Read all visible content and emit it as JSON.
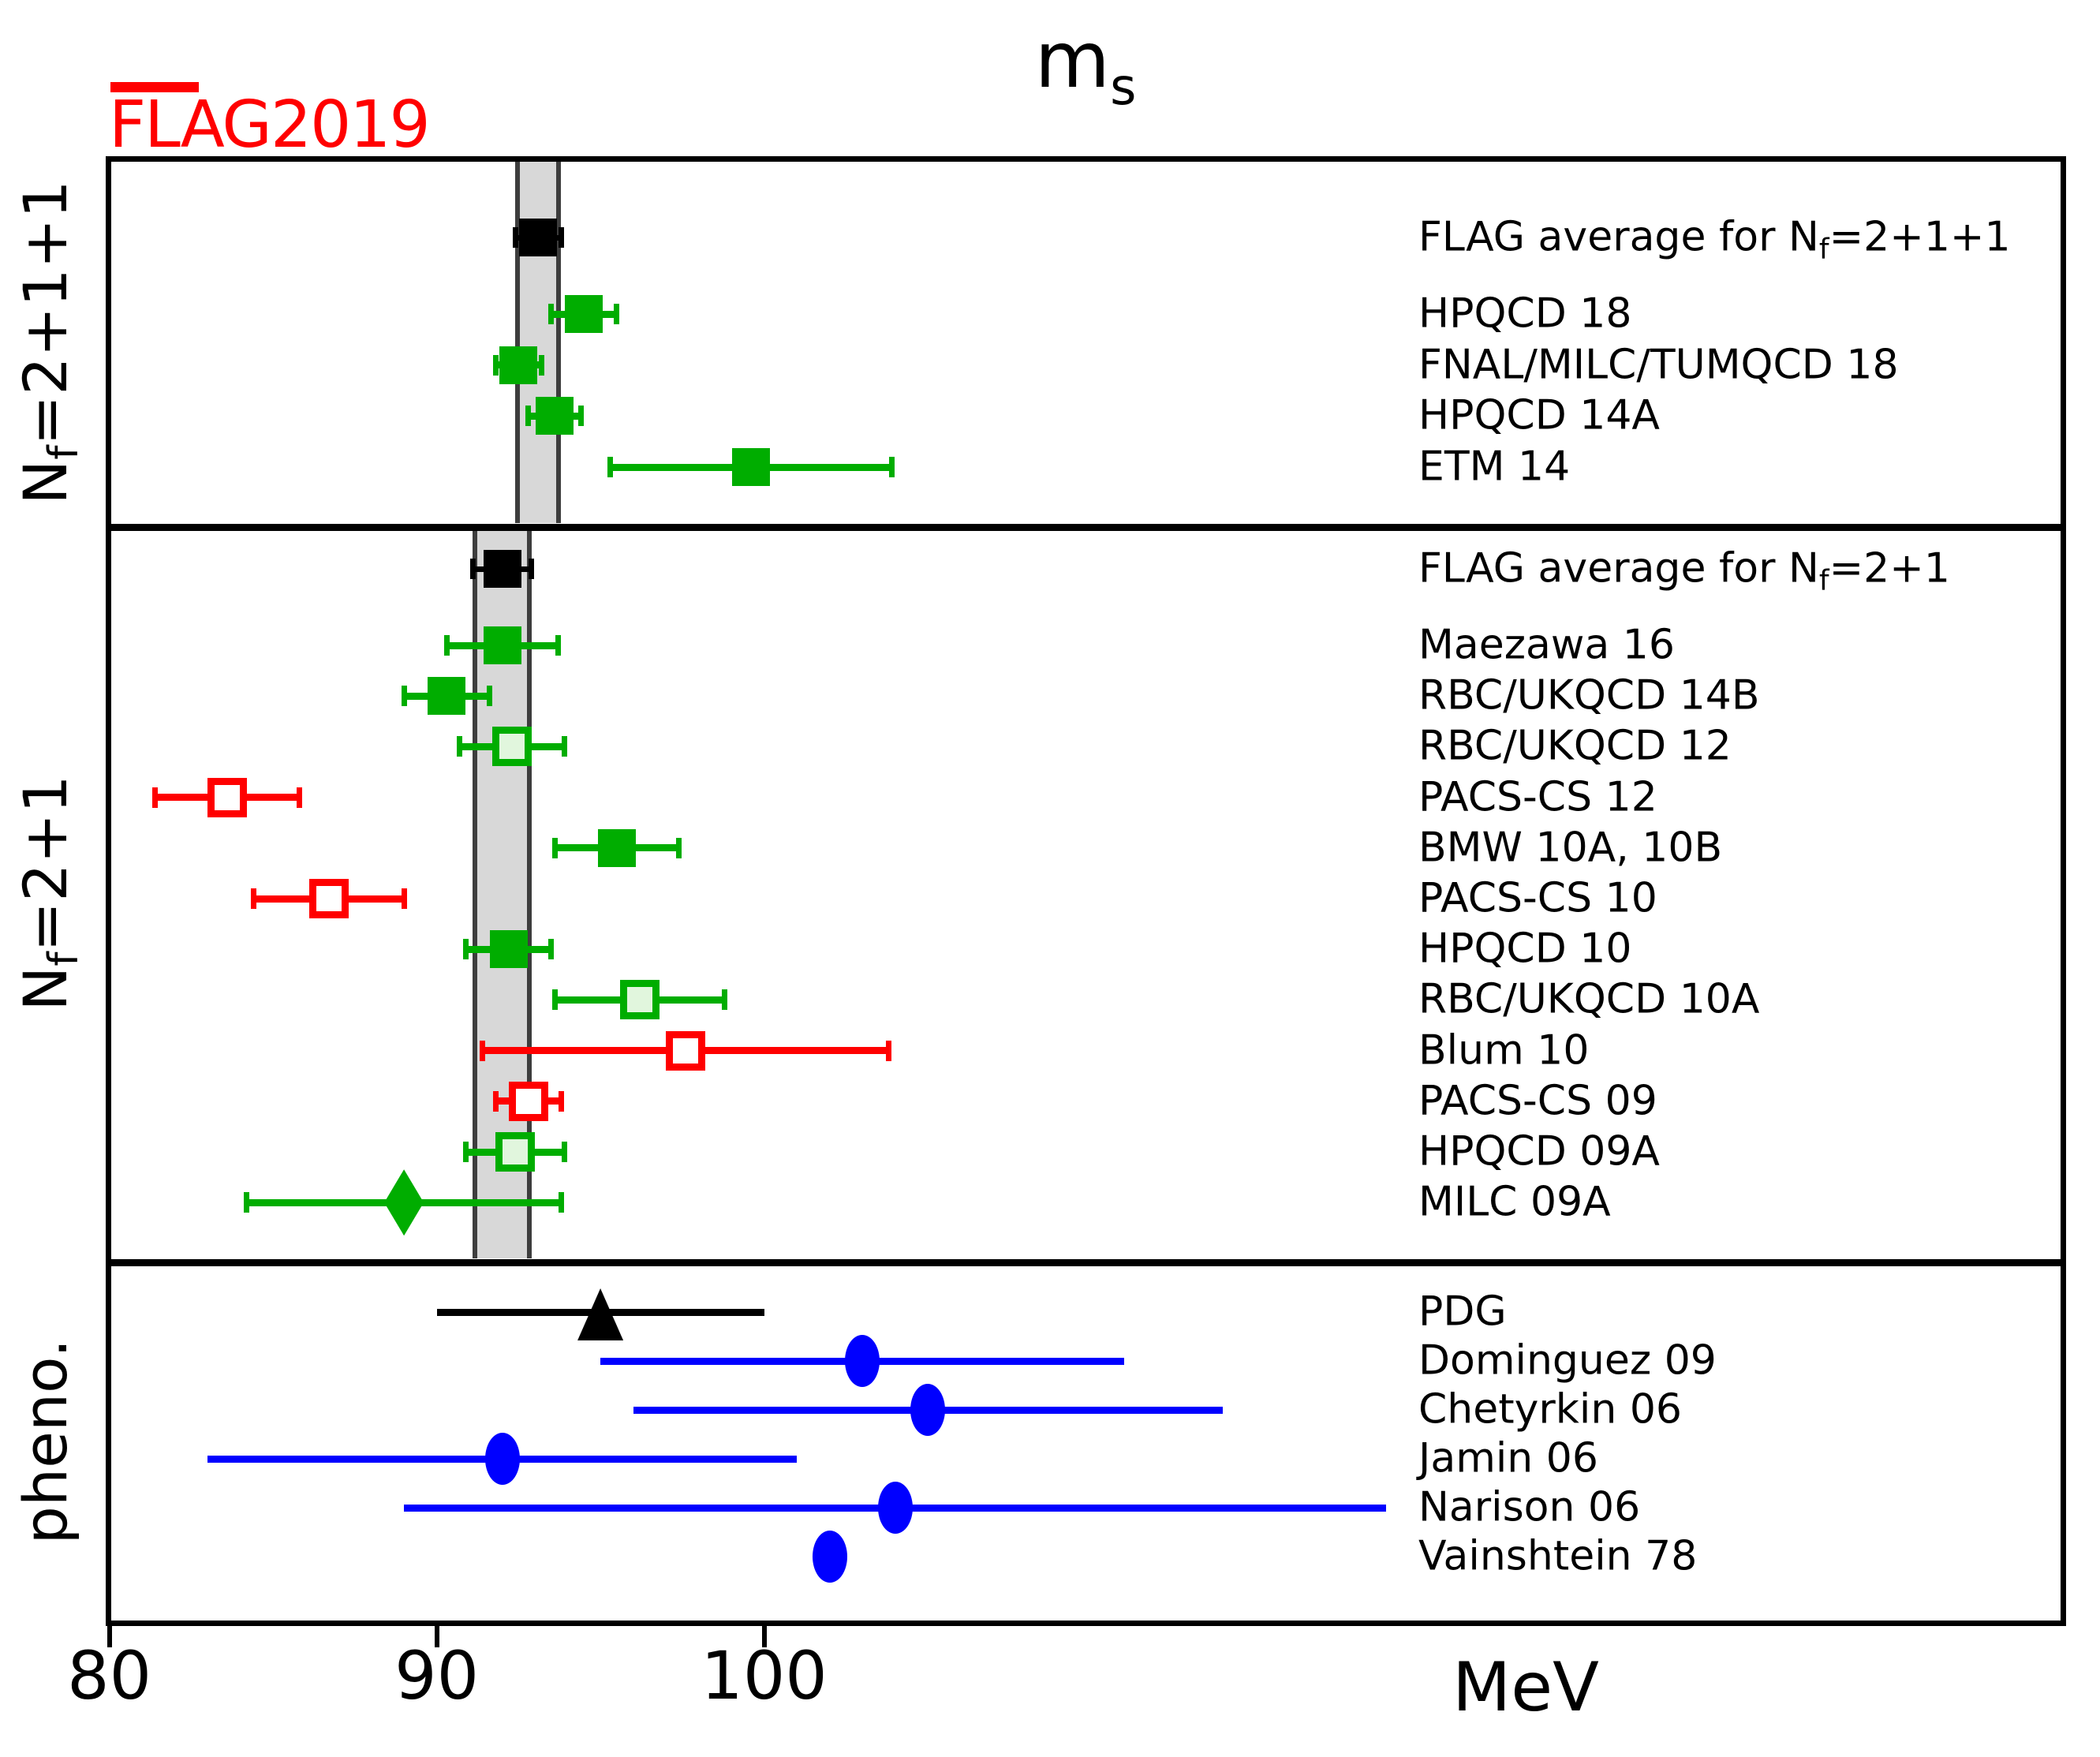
{
  "logo": {
    "flag": "FLAG",
    "year": "2019",
    "color": "#ff0000"
  },
  "title": {
    "base": "m",
    "subscript": "s"
  },
  "colors": {
    "green": "#00ad00",
    "pale_green_fill": "#e1f6dd",
    "red": "#ff0000",
    "blue": "#0000ff",
    "black": "#000000",
    "band_fill": "#d8d8d8",
    "band_edge": "#3d3d3d",
    "logo_red": "#ff0000"
  },
  "chart_data": {
    "type": "scatter",
    "subtype": "horizontal-errorbar-summary-plot",
    "title": "m_s",
    "xlabel": "MeV",
    "xticks": [
      80,
      90,
      100
    ],
    "xrange": [
      80,
      139.7
    ],
    "grid": false,
    "sections": [
      {
        "name": "N_f=2+1+1",
        "band": {
          "center": 93.1,
          "half_width": 0.7
        },
        "rows": [
          {
            "label": "FLAG average for N_f=2+1+1",
            "value": 93.1,
            "err": 0.7,
            "marker": "square",
            "color": "black",
            "is_average": true
          },
          {
            "label": "HPQCD 18",
            "value": 94.5,
            "err": 1.0,
            "marker": "square",
            "color": "green"
          },
          {
            "label": "FNAL/MILC/TUMQCD 18",
            "value": 92.5,
            "err": 0.7,
            "marker": "square",
            "color": "green"
          },
          {
            "label": "HPQCD 14A",
            "value": 93.6,
            "err": 0.8,
            "marker": "square",
            "color": "green"
          },
          {
            "label": "ETM 14",
            "value": 99.6,
            "err": 4.3,
            "marker": "square",
            "color": "green"
          }
        ]
      },
      {
        "name": "N_f=2+1",
        "band": {
          "center": 92.0,
          "half_width": 0.9
        },
        "rows": [
          {
            "label": "FLAG average for N_f=2+1",
            "value": 92.0,
            "err": 0.9,
            "marker": "square",
            "color": "black",
            "is_average": true
          },
          {
            "label": "Maezawa 16",
            "value": 92.0,
            "err": 1.7,
            "marker": "square",
            "color": "green"
          },
          {
            "label": "RBC/UKQCD 14B",
            "value": 90.3,
            "err": 1.3,
            "marker": "square",
            "color": "green"
          },
          {
            "label": "RBC/UKQCD 12",
            "value": 92.3,
            "err": 1.6,
            "marker": "pale-square",
            "color": "green"
          },
          {
            "label": "PACS-CS 12",
            "value": 83.6,
            "err": 2.2,
            "marker": "open-square",
            "color": "red"
          },
          {
            "label": "BMW 10A, 10B",
            "value": 95.5,
            "err": 1.9,
            "marker": "square",
            "color": "green"
          },
          {
            "label": "PACS-CS 10",
            "value": 86.7,
            "err": 2.3,
            "marker": "open-square",
            "color": "red"
          },
          {
            "label": "HPQCD 10",
            "value": 92.2,
            "err": 1.3,
            "marker": "square",
            "color": "green"
          },
          {
            "label": "RBC/UKQCD 10A",
            "value": 96.2,
            "err": 2.6,
            "marker": "pale-square",
            "color": "green"
          },
          {
            "label": "Blum 10",
            "value": 97.6,
            "err": 6.2,
            "marker": "open-square",
            "color": "red"
          },
          {
            "label": "PACS-CS 09",
            "value": 92.8,
            "err": 1.0,
            "marker": "open-square",
            "color": "red"
          },
          {
            "label": "HPQCD 09A",
            "value": 92.4,
            "err": 1.5,
            "marker": "pale-square",
            "color": "green"
          },
          {
            "label": "MILC 09A",
            "value": 89.0,
            "err": 4.8,
            "marker": "diamond",
            "color": "green"
          }
        ]
      },
      {
        "name": "pheno.",
        "band": null,
        "rows": [
          {
            "label": "PDG",
            "value": 95.0,
            "err": 5.0,
            "marker": "triangle",
            "color": "black"
          },
          {
            "label": "Dominguez 09",
            "value": 103.0,
            "err": 8.0,
            "marker": "circle",
            "color": "blue"
          },
          {
            "label": "Chetyrkin 06",
            "value": 105.0,
            "err": 9.0,
            "marker": "circle",
            "color": "blue"
          },
          {
            "label": "Jamin 06",
            "value": 92.0,
            "err": 9.0,
            "marker": "circle",
            "color": "blue"
          },
          {
            "label": "Narison 06",
            "value": 104.0,
            "err": 15.0,
            "marker": "circle",
            "color": "blue"
          },
          {
            "label": "Vainshtein 78",
            "value": 102.0,
            "err": 0,
            "marker": "circle",
            "color": "blue"
          }
        ]
      }
    ]
  }
}
